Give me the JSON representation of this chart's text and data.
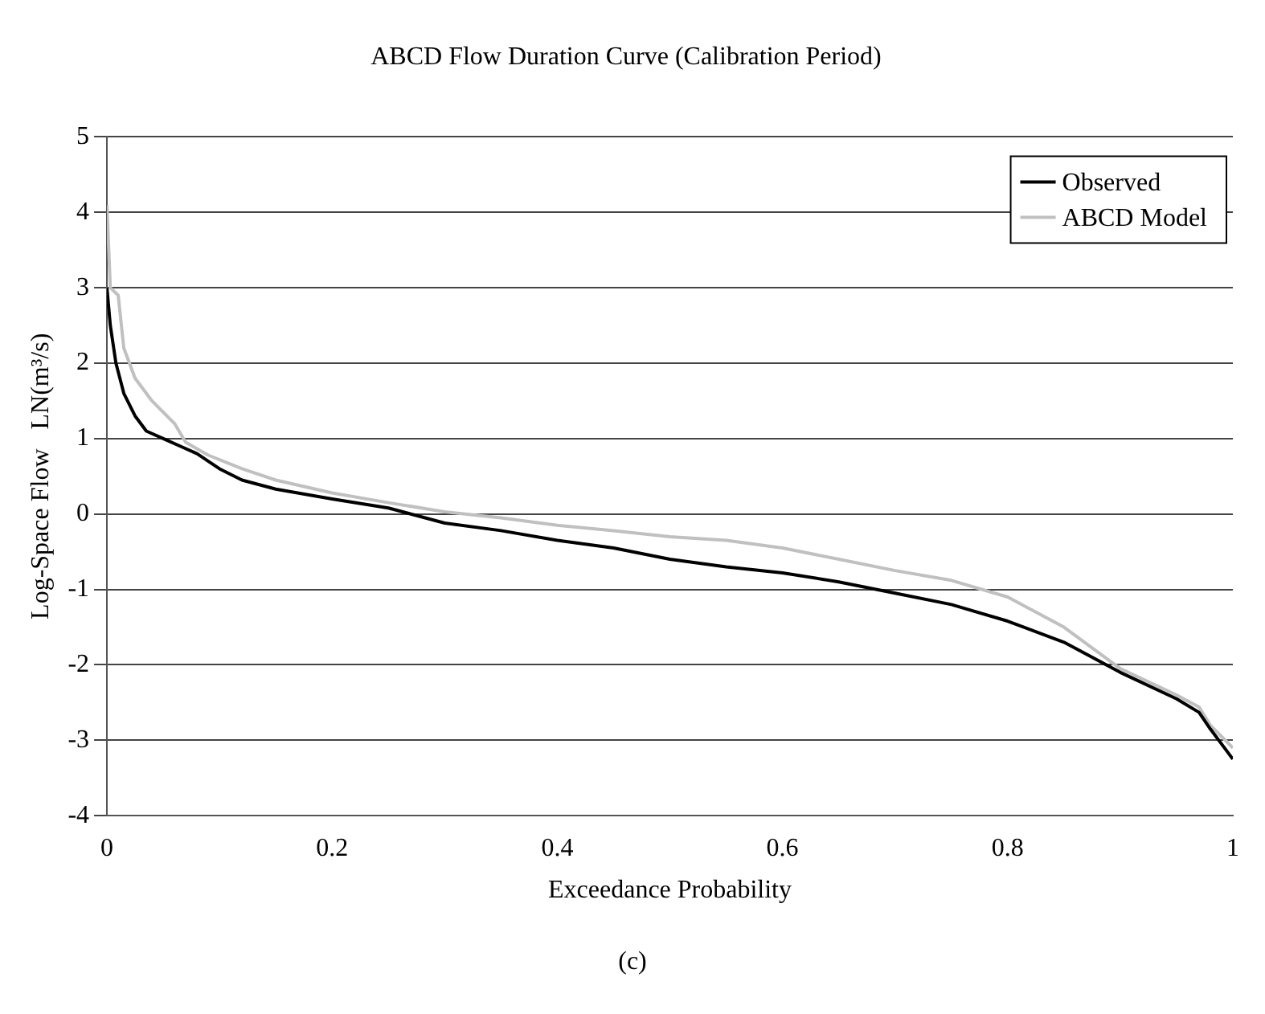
{
  "chart_data": {
    "type": "line",
    "title": "ABCD Flow Duration Curve (Calibration Period)",
    "xlabel": "Exceedance Probability",
    "ylabel": "Log-Space Flow   LN(m³/s)",
    "annotations": [
      "(c)"
    ],
    "xlim": [
      0,
      1
    ],
    "xticks": [
      0,
      0.2,
      0.4,
      0.6,
      0.8,
      1
    ],
    "ylim": [
      -4,
      5
    ],
    "yticks": [
      -4,
      -3,
      -2,
      -1,
      0,
      1,
      2,
      3,
      4,
      5
    ],
    "grid": "y",
    "legend": "top right",
    "marker": "none",
    "line_style": "solid",
    "series": [
      {
        "name": "Observed",
        "color": "#000000",
        "x": [
          0,
          0.003,
          0.008,
          0.015,
          0.025,
          0.035,
          0.05,
          0.065,
          0.08,
          0.1,
          0.12,
          0.15,
          0.2,
          0.25,
          0.3,
          0.35,
          0.4,
          0.45,
          0.5,
          0.55,
          0.6,
          0.65,
          0.7,
          0.75,
          0.8,
          0.85,
          0.9,
          0.95,
          0.97,
          0.98,
          0.995,
          1
        ],
        "values": [
          3.0,
          2.5,
          2.0,
          1.6,
          1.3,
          1.1,
          1.0,
          0.9,
          0.8,
          0.6,
          0.45,
          0.33,
          0.2,
          0.08,
          -0.12,
          -0.22,
          -0.35,
          -0.45,
          -0.6,
          -0.7,
          -0.78,
          -0.9,
          -1.05,
          -1.2,
          -1.42,
          -1.7,
          -2.1,
          -2.45,
          -2.63,
          -2.85,
          -3.15,
          -3.25
        ]
      },
      {
        "name": "ABCD Model",
        "color": "#c0c0c0",
        "x": [
          0,
          0.003,
          0.01,
          0.015,
          0.025,
          0.04,
          0.05,
          0.06,
          0.07,
          0.09,
          0.12,
          0.15,
          0.2,
          0.25,
          0.3,
          0.35,
          0.4,
          0.45,
          0.5,
          0.55,
          0.6,
          0.65,
          0.7,
          0.75,
          0.8,
          0.85,
          0.9,
          0.95,
          0.97,
          0.98,
          1
        ],
        "values": [
          4.1,
          3.0,
          2.9,
          2.2,
          1.8,
          1.5,
          1.35,
          1.2,
          0.95,
          0.78,
          0.6,
          0.45,
          0.28,
          0.15,
          0.03,
          -0.05,
          -0.15,
          -0.22,
          -0.3,
          -0.35,
          -0.45,
          -0.6,
          -0.75,
          -0.88,
          -1.1,
          -1.5,
          -2.05,
          -2.4,
          -2.56,
          -2.8,
          -3.1
        ]
      }
    ]
  }
}
